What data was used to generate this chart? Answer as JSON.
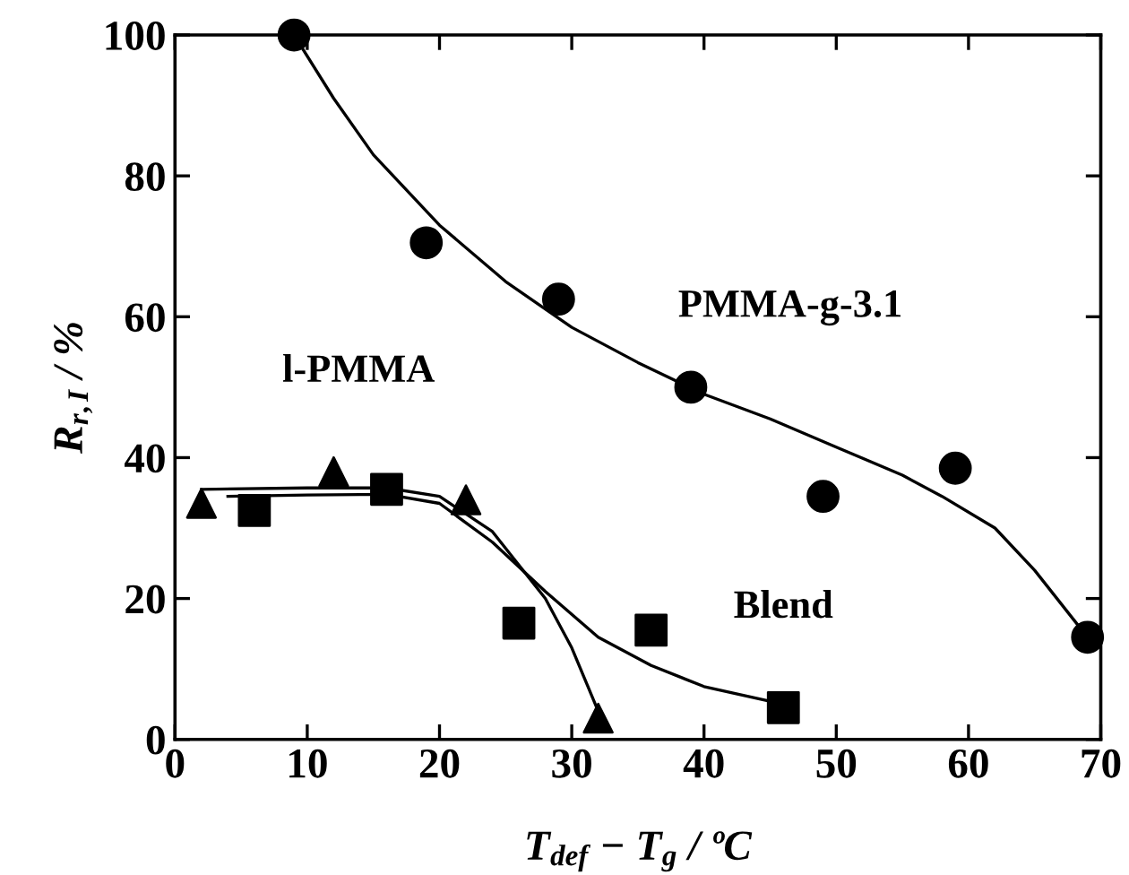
{
  "chart_data": {
    "type": "scatter",
    "xlabel": "T$_{def}$ − T$_{g}$ / ºC",
    "ylabel": "R$_{r,I}$ / %",
    "xlim": [
      0,
      70
    ],
    "ylim": [
      0,
      100
    ],
    "xticks": [
      0,
      10,
      20,
      30,
      40,
      50,
      60,
      70
    ],
    "yticks": [
      0,
      20,
      40,
      60,
      80,
      100
    ],
    "grid": false,
    "legend": false,
    "series": [
      {
        "name": "PMMA-g-3.1",
        "marker": "circle",
        "color": "#000000",
        "x": [
          9,
          19,
          29,
          39,
          49,
          59,
          69
        ],
        "values": [
          100,
          70.5,
          62.5,
          50,
          34.5,
          38.5,
          14.5
        ]
      },
      {
        "name": "l-PMMA",
        "marker": "triangle",
        "color": "#000000",
        "x": [
          2,
          12,
          22,
          32
        ],
        "values": [
          33.5,
          38,
          34,
          3
        ]
      },
      {
        "name": "Blend",
        "marker": "square",
        "color": "#000000",
        "x": [
          6,
          16,
          26,
          36,
          46
        ],
        "values": [
          32.5,
          35.5,
          16.5,
          15.5,
          4.5
        ]
      },
      {
        "type": "line",
        "marker": "none",
        "color": "#000000",
        "x": [
          9,
          12,
          15,
          20,
          25,
          30,
          35,
          40,
          45,
          50,
          55,
          58,
          62,
          65,
          69
        ],
        "values": [
          100,
          91,
          83,
          73,
          65,
          58.5,
          53.5,
          49,
          45.5,
          41.5,
          37.5,
          34.5,
          30,
          24,
          14.5
        ]
      },
      {
        "type": "line",
        "marker": "none",
        "color": "#000000",
        "x": [
          2,
          10,
          16,
          20,
          24,
          28,
          30,
          32
        ],
        "values": [
          35.5,
          35.7,
          35.7,
          34.5,
          29.5,
          20,
          13,
          4
        ]
      },
      {
        "type": "line",
        "marker": "none",
        "color": "#000000",
        "x": [
          4,
          10,
          16,
          20,
          24,
          28,
          32,
          36,
          40,
          46
        ],
        "values": [
          34.5,
          34.7,
          34.8,
          33.5,
          28,
          21,
          14.5,
          10.5,
          7.5,
          5
        ]
      }
    ]
  }
}
